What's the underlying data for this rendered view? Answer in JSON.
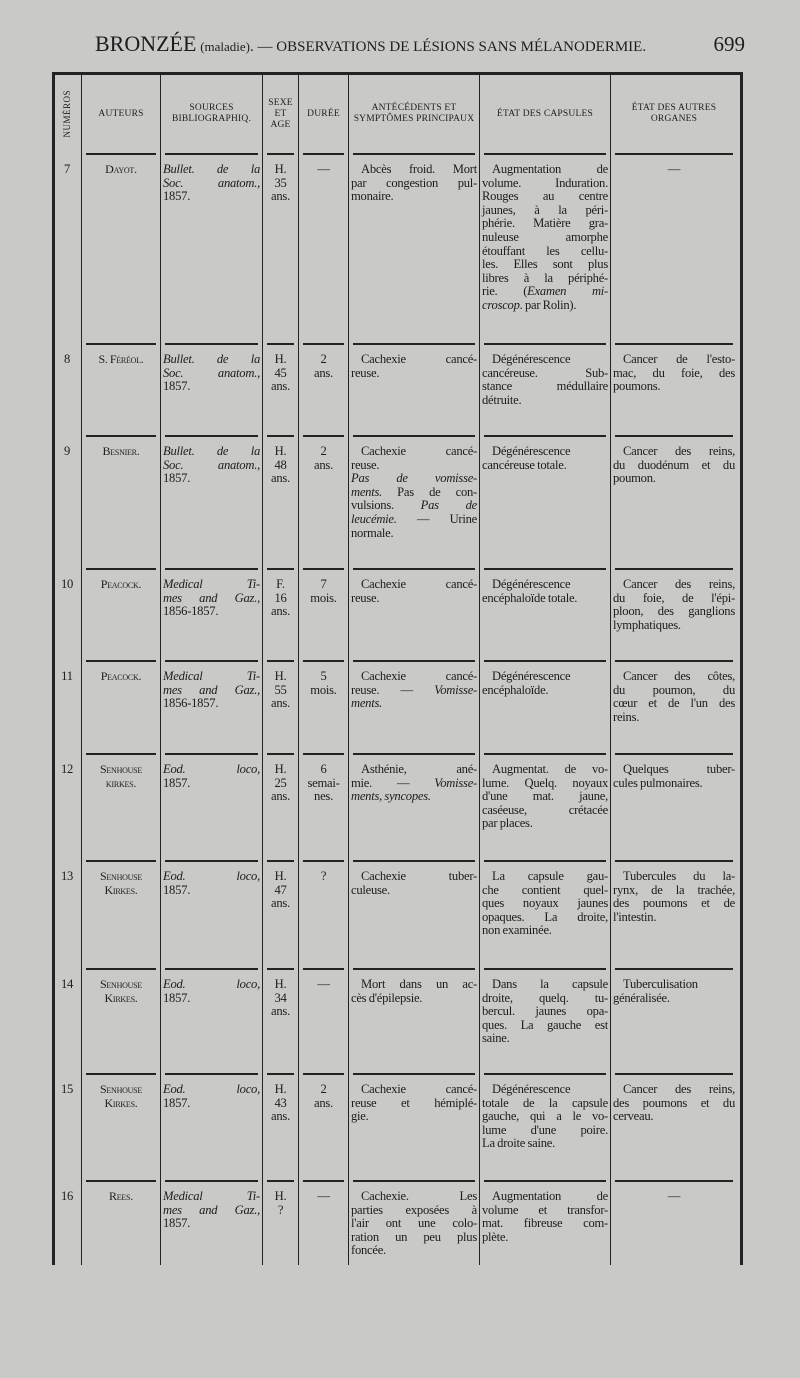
{
  "running_head": {
    "title": "BRONZÉE",
    "subtitle": "(maladie)",
    "section": ". — OBSERVATIONS DE LÉSIONS SANS MÉLANODERMIE.",
    "page_number": "699"
  },
  "table": {
    "headers": [
      "NUMÉROS",
      "AUTEURS",
      "SOURCES BIBLIOGRAPHIQ.",
      "SEXE ET AGE",
      "DURÉE",
      "ANTÉCÉDENTS ET SYMPTÔMES PRINCIPAUX",
      "ÉTAT DES CAPSULES",
      "ÉTAT DES AUTRES ORGANES"
    ],
    "rows": [
      {
        "num": "7",
        "author": [
          "Dayot."
        ],
        "source": [
          [
            [
              "Bullet. de la",
              1
            ]
          ],
          [
            [
              "Soc. anatom.,",
              1
            ]
          ],
          "1857."
        ],
        "sex_age": [
          "H.",
          "35",
          "ans."
        ],
        "duration": [
          "—"
        ],
        "antecedents": [
          "Abcès froid. Mort",
          "par congestion pul-",
          "monaire."
        ],
        "capsules": [
          "Augmentation de",
          "volume. Induration.",
          "Rouges au centre",
          "jaunes, à la péri-",
          "phérie. Matière gra-",
          "nuleuse amorphe",
          "étouffant les cellu-",
          "les. Elles sont plus",
          "libres à la périphé-",
          [
            [
              "rie. ("
            ],
            [
              "Examen mi-",
              1
            ]
          ],
          [
            [
              "croscop",
              1
            ],
            [
              ". par Rolin)."
            ]
          ]
        ],
        "other_organs": [
          "—"
        ]
      },
      {
        "num": "8",
        "author": [
          "S. Féréol."
        ],
        "source": [
          [
            [
              "Bullet. de la",
              1
            ]
          ],
          [
            [
              "Soc. anatom.,",
              1
            ]
          ],
          "1857."
        ],
        "sex_age": [
          "H.",
          "45",
          "ans."
        ],
        "duration": [
          "2",
          "ans."
        ],
        "antecedents": [
          "Cachexie cancé-",
          "reuse."
        ],
        "capsules": [
          "Dégénérescence",
          "cancéreuse. Sub-",
          "stance médullaire",
          "détruite."
        ],
        "other_organs": [
          "Cancer de l'esto-",
          "mac, du foie, des",
          "poumons."
        ]
      },
      {
        "num": "9",
        "author": [
          "Besnier."
        ],
        "source": [
          [
            [
              "Bullet. de la",
              1
            ]
          ],
          [
            [
              "Soc. anatom.,",
              1
            ]
          ],
          "1857."
        ],
        "sex_age": [
          "H.",
          "48",
          "ans."
        ],
        "duration": [
          "2",
          "ans."
        ],
        "antecedents": [
          "Cachexie cancé-",
          "reuse.",
          [
            [
              "Pas de vomisse-",
              1
            ]
          ],
          [
            [
              "ments.",
              1
            ],
            [
              " Pas de con-"
            ]
          ],
          [
            [
              "vulsions. "
            ],
            [
              "Pas de",
              1
            ]
          ],
          [
            [
              "leucémie.",
              1
            ],
            [
              " — Urine"
            ]
          ],
          "normale."
        ],
        "capsules": [
          "Dégénérescence",
          "cancéreuse totale."
        ],
        "other_organs": [
          "Cancer des reins,",
          "du duodénum et du",
          "poumon."
        ]
      },
      {
        "num": "10",
        "author": [
          "Peacock."
        ],
        "source": [
          [
            [
              "Medical Ti-",
              1
            ]
          ],
          [
            [
              "mes and Gaz.,",
              1
            ]
          ],
          "1856-1857."
        ],
        "sex_age": [
          "F.",
          "16",
          "ans."
        ],
        "duration": [
          "7",
          "mois."
        ],
        "antecedents": [
          "Cachexie cancé-",
          "reuse."
        ],
        "capsules": [
          "Dégénérescence",
          "encéphaloïde totale."
        ],
        "other_organs": [
          "Cancer des reins,",
          "du foie, de l'épi-",
          "ploon, des ganglions",
          "lymphatiques."
        ]
      },
      {
        "num": "11",
        "author": [
          "Peacock."
        ],
        "source": [
          [
            [
              "Medical Ti-",
              1
            ]
          ],
          [
            [
              "mes and Gaz.,",
              1
            ]
          ],
          "1856-1857."
        ],
        "sex_age": [
          "H.",
          "55",
          "ans."
        ],
        "duration": [
          "5",
          "mois."
        ],
        "antecedents": [
          "Cachexie cancé-",
          [
            [
              "reuse. — "
            ],
            [
              "Vomisse-",
              1
            ]
          ],
          [
            [
              "ments.",
              1
            ]
          ]
        ],
        "capsules": [
          "Dégénérescence",
          "encéphaloïde."
        ],
        "other_organs": [
          "Cancer des côtes,",
          "du poumon, du",
          "cœur et de l'un des",
          "reins."
        ]
      },
      {
        "num": "12",
        "author": [
          "Senhouse",
          "kirkes."
        ],
        "source": [
          [
            [
              "Eod. loco,",
              1
            ]
          ],
          "1857."
        ],
        "sex_age": [
          "H.",
          "25",
          "ans."
        ],
        "duration": [
          "6",
          "semai-",
          "nes."
        ],
        "antecedents": [
          "Asthénie, ané-",
          [
            [
              "mie. — "
            ],
            [
              "Vomisse-",
              1
            ]
          ],
          [
            [
              "ments, syncopes.",
              1
            ]
          ]
        ],
        "capsules": [
          "Augmentat. de vo-",
          "lume. Quelq. noyaux",
          "d'une mat. jaune,",
          "caséeuse, crétacée",
          "par places."
        ],
        "other_organs": [
          "Quelques tuber-",
          "cules pulmonaires."
        ]
      },
      {
        "num": "13",
        "author": [
          "Senhouse",
          "Kirkes."
        ],
        "source": [
          [
            [
              "Eod. loco,",
              1
            ]
          ],
          "1857."
        ],
        "sex_age": [
          "H.",
          "47",
          "ans."
        ],
        "duration": [
          "?"
        ],
        "antecedents": [
          "Cachexie tuber-",
          "culeuse."
        ],
        "capsules": [
          "La capsule gau-",
          "che contient quel-",
          "ques noyaux jaunes",
          "opaques. La droite,",
          "non examinée."
        ],
        "other_organs": [
          "Tubercules du la-",
          "rynx, de la trachée,",
          "des poumons et de",
          "l'intestin."
        ]
      },
      {
        "num": "14",
        "author": [
          "Senhouse",
          "Kirkes."
        ],
        "source": [
          [
            [
              "Eod. loco,",
              1
            ]
          ],
          "1857."
        ],
        "sex_age": [
          "H.",
          "34",
          "ans."
        ],
        "duration": [
          "—"
        ],
        "antecedents": [
          "Mort dans un ac-",
          "cès d'épilepsie."
        ],
        "capsules": [
          "Dans la capsule",
          "droite, quelq. tu-",
          "bercul. jaunes opa-",
          "ques. La gauche est",
          "saine."
        ],
        "other_organs": [
          "Tuberculisation",
          "généralisée."
        ]
      },
      {
        "num": "15",
        "author": [
          "Senhouse",
          "Kirkes."
        ],
        "source": [
          [
            [
              "Eod. loco,",
              1
            ]
          ],
          "1857."
        ],
        "sex_age": [
          "H.",
          "43",
          "ans."
        ],
        "duration": [
          "2",
          "ans."
        ],
        "antecedents": [
          "Cachexie cancé-",
          "reuse et hémiplé-",
          "gie."
        ],
        "capsules": [
          "Dégénérescence",
          "totale de la capsule",
          "gauche, qui a le vo-",
          "lume d'une poire.",
          "La droite saine."
        ],
        "other_organs": [
          "Cancer des reins,",
          "des poumons et du",
          "cerveau."
        ]
      },
      {
        "num": "16",
        "author": [
          "Rees."
        ],
        "source": [
          [
            [
              "Medical Ti-",
              1
            ]
          ],
          [
            [
              "mes and Gaz.,",
              1
            ]
          ],
          "1857."
        ],
        "sex_age": [
          "H.",
          "?"
        ],
        "duration": [
          "—"
        ],
        "antecedents": [
          "Cachexie. Les",
          "parties exposées à",
          "l'air ont une colo-",
          "ration un peu plus",
          "foncée."
        ],
        "capsules": [
          "Augmentation de",
          "volume et transfor-",
          "mat. fibreuse com-",
          "plète."
        ],
        "other_organs": [
          "—"
        ]
      }
    ]
  }
}
